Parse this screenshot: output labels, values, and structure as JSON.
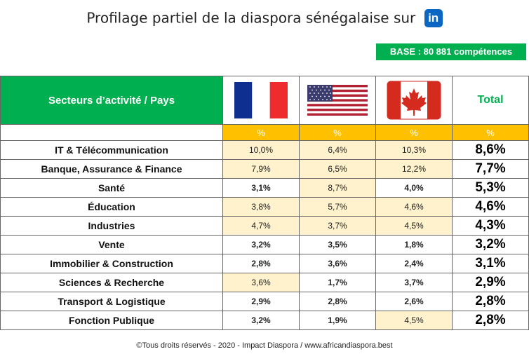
{
  "title": "Profilage partiel de la diaspora sénégalaise sur",
  "title_logo": "in",
  "base_badge": "BASE : 80 881 compétences",
  "header": {
    "sector_label": "Secteurs d’activité / Pays",
    "total_label": "Total",
    "pct": "%"
  },
  "rows": [
    {
      "sector": "IT & Télécommunication",
      "france": "10,0%",
      "usa": "6,4%",
      "canada": "10,3%",
      "total": "8,6%"
    },
    {
      "sector": "Banque, Assurance & Finance",
      "france": "7,9%",
      "usa": "6,5%",
      "canada": "12,2%",
      "total": "7,7%"
    },
    {
      "sector": "Santé",
      "france": "3,1%",
      "usa": "8,7%",
      "canada": "4,0%",
      "total": "5,3%"
    },
    {
      "sector": "Éducation",
      "france": "3,8%",
      "usa": "5,7%",
      "canada": "4,6%",
      "total": "4,6%"
    },
    {
      "sector": "Industries",
      "france": "4,7%",
      "usa": "3,7%",
      "canada": "4,5%",
      "total": "4,3%"
    },
    {
      "sector": "Vente",
      "france": "3,2%",
      "usa": "3,5%",
      "canada": "1,8%",
      "total": "3,2%"
    },
    {
      "sector": "Immobilier & Construction",
      "france": "2,8%",
      "usa": "3,6%",
      "canada": "2,4%",
      "total": "3,1%"
    },
    {
      "sector": "Sciences & Recherche",
      "france": "3,6%",
      "usa": "1,7%",
      "canada": "3,7%",
      "total": "2,9%"
    },
    {
      "sector": "Transport & Logistique",
      "france": "2,9%",
      "usa": "2,8%",
      "canada": "2,6%",
      "total": "2,8%"
    },
    {
      "sector": "Fonction Publique",
      "france": "3,2%",
      "usa": "1,9%",
      "canada": "4,5%",
      "total": "2,8%"
    }
  ],
  "colors": {
    "green": "#00b050",
    "orange": "#ffc000",
    "highlight": "#fff2cc"
  },
  "flags": [
    "france-flag-icon",
    "usa-flag-icon",
    "canada-flag-icon"
  ],
  "footer": "©Tous droits réservés - 2020 - Impact Diaspora / www.africandiaspora.best"
}
